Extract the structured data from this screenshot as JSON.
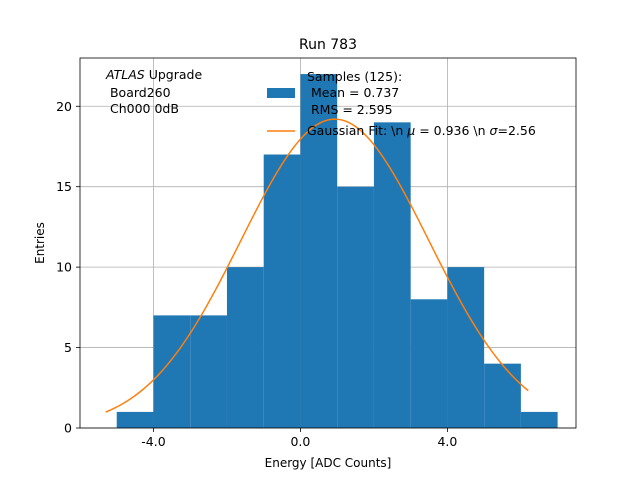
{
  "chart_data": {
    "type": "bar",
    "title": "Run 783",
    "xlabel": "Energy [ADC Counts]",
    "ylabel": "Entries",
    "xlim": [
      -6.0,
      7.5
    ],
    "ylim": [
      0,
      23
    ],
    "grid": true,
    "x_ticks": [
      -4.0,
      0.0,
      4.0
    ],
    "x_tick_labels": [
      "-4.0",
      "0.0",
      "4.0"
    ],
    "y_ticks": [
      0,
      5,
      10,
      15,
      20
    ],
    "y_tick_labels": [
      "0",
      "5",
      "10",
      "15",
      "20"
    ],
    "histogram": {
      "name": "Samples (125):",
      "color": "#1f77b4",
      "bin_edges": [
        -5,
        -4,
        -3,
        -2,
        -1,
        0,
        1,
        2,
        3,
        4,
        5,
        6,
        7
      ],
      "counts": [
        1,
        7,
        7,
        10,
        17,
        22,
        15,
        19,
        8,
        10,
        4,
        1
      ]
    },
    "fit": {
      "name": "Gaussian Fit",
      "color": "#ff7f0e",
      "amplitude": 19.2,
      "mu": 0.936,
      "sigma": 2.56,
      "x_range": [
        -5.3,
        6.2
      ]
    },
    "legend": {
      "position": "top-right",
      "hist_lines": [
        "Samples (125):",
        " Mean = 0.737",
        " RMS = 2.595"
      ],
      "fit_line": "Gaussian Fit: \\n $\\mu$ = 0.936 \\n $\\sigma$=2.56",
      "fit_line_parts": [
        "Gaussian Fit: \\n ",
        "μ",
        " = 0.936 \\n ",
        "σ",
        "=2.56"
      ]
    },
    "annotation": {
      "position": "top-left",
      "experiment": "ATLAS",
      "experiment_suffix": " Upgrade",
      "lines": [
        " Board260",
        " Ch000 0dB"
      ]
    }
  }
}
